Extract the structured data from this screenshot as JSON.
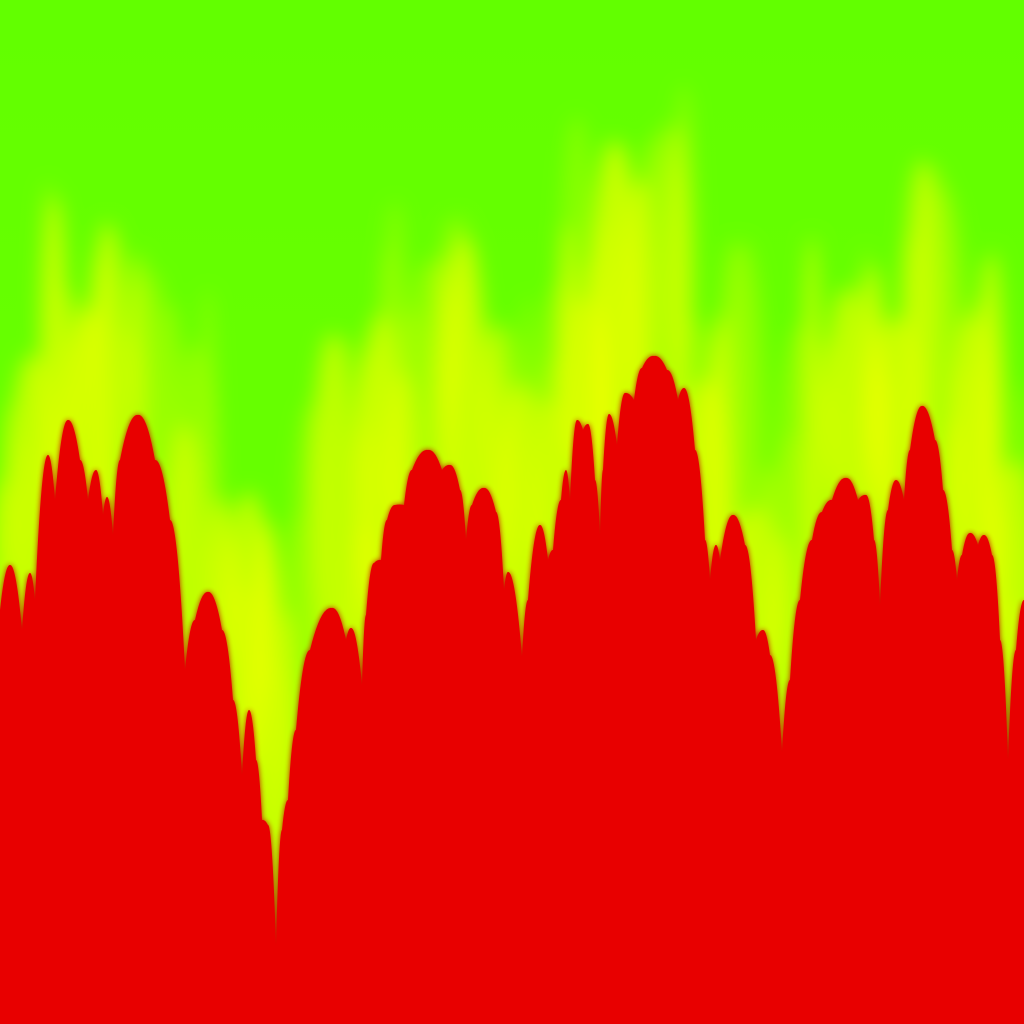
{
  "artwork": {
    "colors": {
      "sky": "#66ff00",
      "glow": "#ffff00",
      "glow_soft": "#c8ff00",
      "terrain": "#e80000",
      "terrain_edge": "#c80000"
    },
    "description_icon": "abstract-terrain"
  }
}
